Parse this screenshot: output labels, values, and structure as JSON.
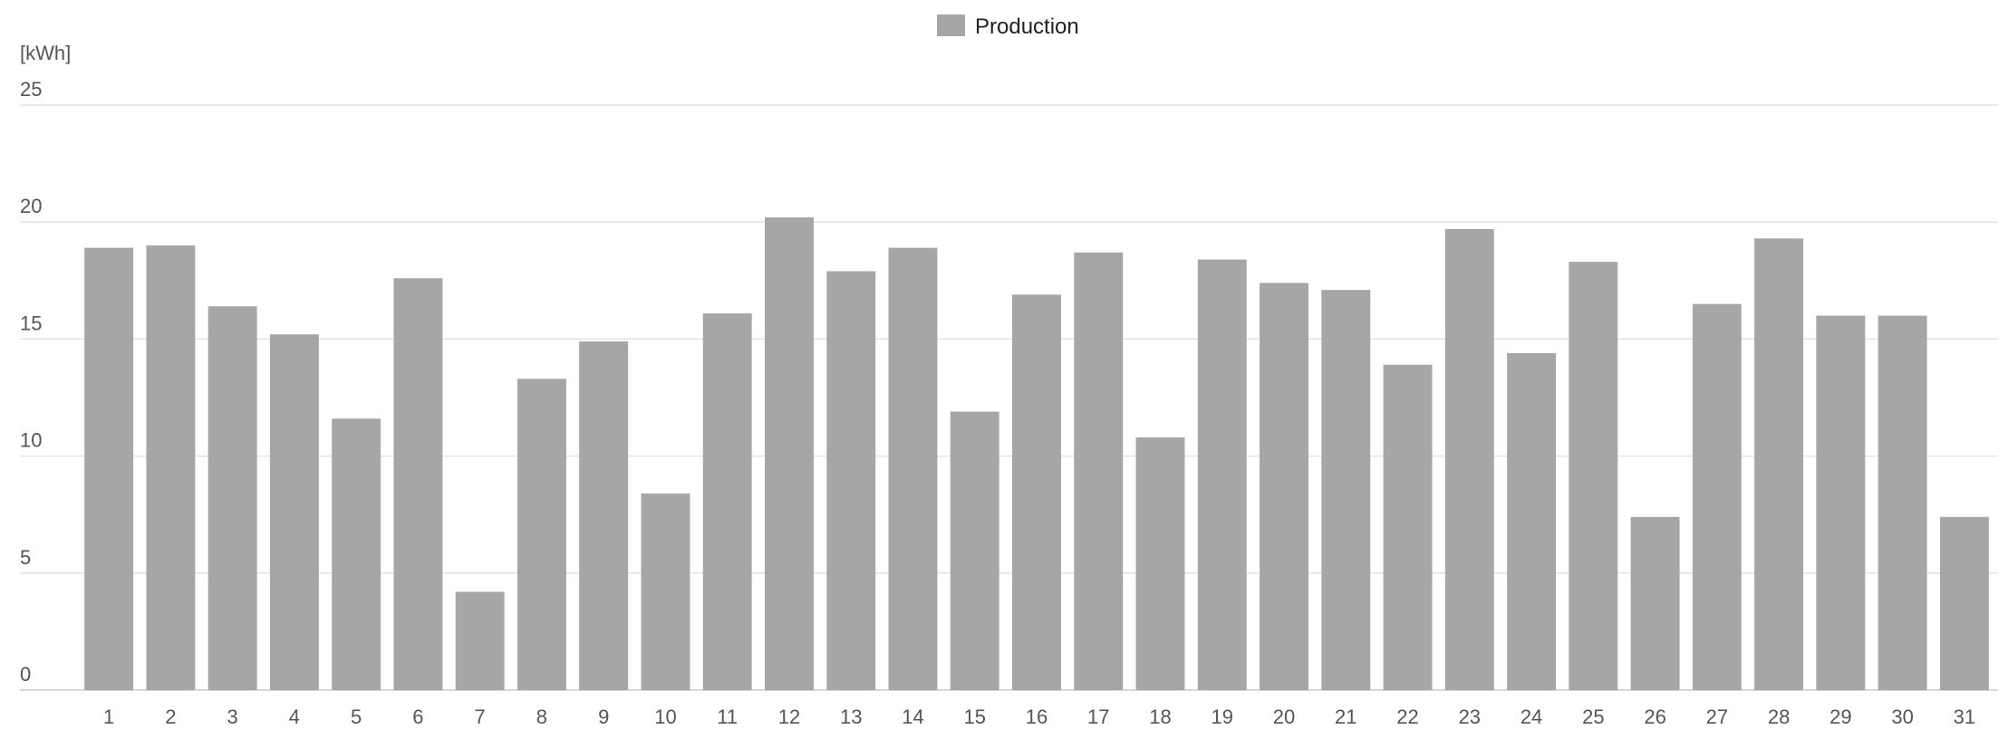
{
  "legend": {
    "label": "Production",
    "color": "#a6a6a7"
  },
  "colors": {
    "bar": "#a6a6a7",
    "grid": "#e2e2e2",
    "text": "#555555"
  },
  "chart_data": {
    "type": "bar",
    "unit_label": "[kWh]",
    "categories": [
      "1",
      "2",
      "3",
      "4",
      "5",
      "6",
      "7",
      "8",
      "9",
      "10",
      "11",
      "12",
      "13",
      "14",
      "15",
      "16",
      "17",
      "18",
      "19",
      "20",
      "21",
      "22",
      "23",
      "24",
      "25",
      "26",
      "27",
      "28",
      "29",
      "30",
      "31"
    ],
    "series": [
      {
        "name": "Production",
        "values": [
          18.9,
          19.0,
          16.4,
          15.2,
          11.6,
          17.6,
          4.2,
          13.3,
          14.9,
          8.4,
          16.1,
          20.2,
          17.9,
          18.9,
          11.9,
          16.9,
          18.7,
          10.8,
          18.4,
          17.4,
          17.1,
          13.9,
          19.7,
          14.4,
          18.3,
          7.4,
          16.5,
          19.3,
          16.0,
          16.0,
          7.4
        ]
      }
    ],
    "yticks": [
      0,
      5,
      10,
      15,
      20,
      25
    ],
    "ylim": [
      0,
      25
    ],
    "grid": true,
    "legend_position": "top-center"
  }
}
